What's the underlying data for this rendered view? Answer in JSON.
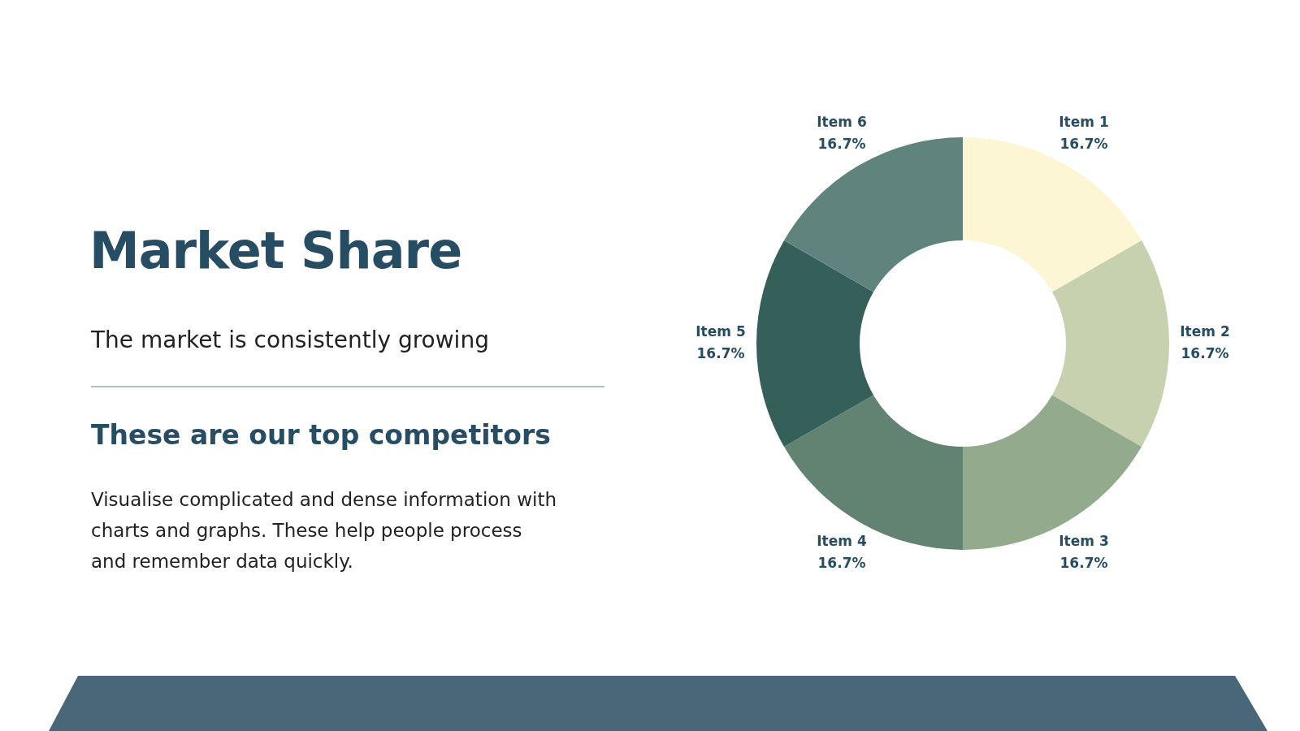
{
  "chart_data": {
    "type": "donut",
    "title": "Market Share",
    "subtitle": "The market is consistently growing",
    "annotations": [
      "These are our top competitors",
      "Visualise complicated and dense information with charts and graphs. These help people process and remember data quickly."
    ],
    "categories": [
      "Item 1",
      "Item 2",
      "Item 3",
      "Item 4",
      "Item 5",
      "Item 6"
    ],
    "values": [
      16.7,
      16.7,
      16.7,
      16.7,
      16.7,
      16.7
    ],
    "value_labels": [
      "16.7%",
      "16.7%",
      "16.7%",
      "16.7%",
      "16.7%",
      "16.7%"
    ],
    "colors": [
      "#fdf6d5",
      "#c7d1b0",
      "#93ab8c",
      "#628371",
      "#355f59",
      "#61837e"
    ]
  }
}
